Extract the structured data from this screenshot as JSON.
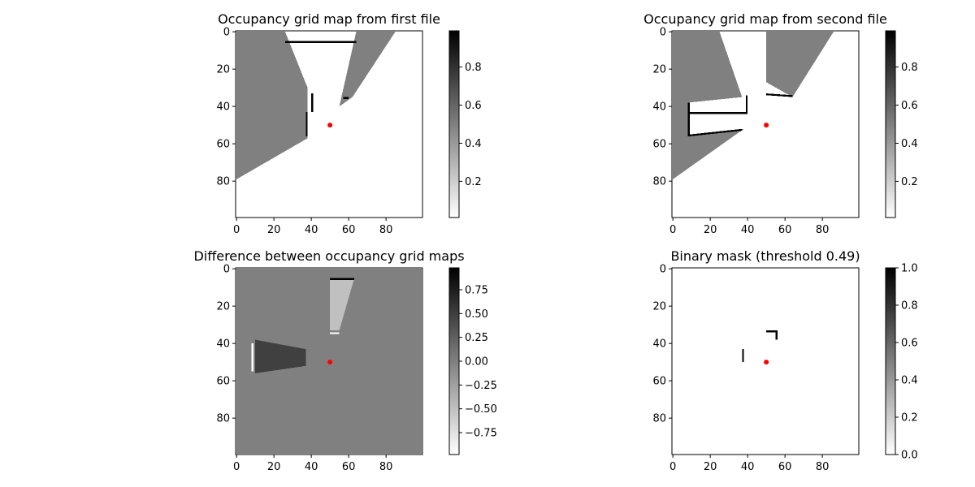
{
  "chart_data": [
    {
      "type": "heatmap",
      "title": "Occupancy grid map from first file",
      "xlim": [
        0,
        99
      ],
      "ylim": [
        99,
        0
      ],
      "xticks": [
        0,
        20,
        40,
        60,
        80
      ],
      "yticks": [
        0,
        20,
        40,
        60,
        80
      ],
      "grid": false,
      "colormap": "gray_r",
      "colorbar": {
        "range": [
          0.01,
          0.99
        ],
        "ticks": [
          "0.2",
          "0.4",
          "0.6",
          "0.8"
        ],
        "tick_values": [
          0.2,
          0.4,
          0.6,
          0.8
        ]
      },
      "marker": {
        "x": 50,
        "y": 50,
        "color": "#ff0000"
      },
      "regions": [
        {
          "fill": "#808080",
          "points": [
            [
              0,
              0
            ],
            [
              26,
              0
            ],
            [
              38,
              30
            ],
            [
              38,
              57
            ],
            [
              0,
              79
            ]
          ]
        },
        {
          "fill": "#808080",
          "points": [
            [
              85,
              0
            ],
            [
              64,
              0
            ],
            [
              55,
              40
            ],
            [
              62,
              35
            ]
          ]
        },
        {
          "fill": "#000000",
          "points": [
            [
              26,
              5
            ],
            [
              64,
              5
            ],
            [
              64,
              6
            ],
            [
              26,
              6
            ]
          ]
        },
        {
          "fill": "#000000",
          "points": [
            [
              40,
              33
            ],
            [
              41,
              33
            ],
            [
              41,
              43
            ],
            [
              40,
              43
            ]
          ]
        },
        {
          "fill": "#000000",
          "points": [
            [
              37,
              43
            ],
            [
              38,
              43
            ],
            [
              38,
              56
            ],
            [
              37,
              56
            ]
          ]
        },
        {
          "fill": "#000000",
          "points": [
            [
              57,
              35
            ],
            [
              60,
              35
            ],
            [
              60,
              36
            ],
            [
              57,
              36
            ]
          ]
        }
      ]
    },
    {
      "type": "heatmap",
      "title": "Occupancy grid map from second file",
      "xlim": [
        0,
        99
      ],
      "ylim": [
        99,
        0
      ],
      "xticks": [
        0,
        20,
        40,
        60,
        80
      ],
      "yticks": [
        0,
        20,
        40,
        60,
        80
      ],
      "grid": false,
      "colormap": "gray_r",
      "colorbar": {
        "range": [
          0.01,
          0.99
        ],
        "ticks": [
          "0.2",
          "0.4",
          "0.6",
          "0.8"
        ],
        "tick_values": [
          0.2,
          0.4,
          0.6,
          0.8
        ]
      },
      "marker": {
        "x": 50,
        "y": 50,
        "color": "#ff0000"
      },
      "regions": [
        {
          "fill": "#808080",
          "points": [
            [
              0,
              0
            ],
            [
              25,
              0
            ],
            [
              37,
              35
            ],
            [
              8,
              38
            ],
            [
              8,
              56
            ],
            [
              38,
              52
            ],
            [
              0,
              79
            ]
          ]
        },
        {
          "fill": "#808080",
          "points": [
            [
              50,
              0
            ],
            [
              86,
              0
            ],
            [
              64,
              35
            ],
            [
              50,
              27
            ]
          ]
        },
        {
          "fill": "#000000",
          "points": [
            [
              39,
              34
            ],
            [
              40,
              34
            ],
            [
              40,
              44
            ],
            [
              39,
              44
            ]
          ]
        },
        {
          "fill": "#000000",
          "points": [
            [
              8,
              38
            ],
            [
              9,
              38
            ],
            [
              9,
              56
            ],
            [
              8,
              56
            ]
          ]
        },
        {
          "fill": "#000000",
          "points": [
            [
              9,
              43
            ],
            [
              39,
              43
            ],
            [
              39,
              44
            ],
            [
              9,
              44
            ]
          ]
        },
        {
          "fill": "#000000",
          "points": [
            [
              9,
              55
            ],
            [
              37,
              52
            ],
            [
              37,
              53
            ],
            [
              9,
              56
            ]
          ]
        },
        {
          "fill": "#000000",
          "points": [
            [
              50,
              33
            ],
            [
              64,
              34
            ],
            [
              64,
              35
            ],
            [
              50,
              34
            ]
          ]
        }
      ]
    },
    {
      "type": "heatmap",
      "title": "Difference between occupancy grid maps",
      "xlim": [
        0,
        99
      ],
      "ylim": [
        99,
        0
      ],
      "xticks": [
        0,
        20,
        40,
        60,
        80
      ],
      "yticks": [
        0,
        20,
        40,
        60,
        80
      ],
      "grid": false,
      "colormap": "gray_r",
      "colorbar": {
        "range": [
          -0.98,
          0.98
        ],
        "ticks": [
          "0.75",
          "0.50",
          "0.25",
          "0.00",
          "−0.25",
          "−0.50",
          "−0.75"
        ],
        "tick_values": [
          0.75,
          0.5,
          0.25,
          0.0,
          -0.25,
          -0.5,
          -0.75
        ]
      },
      "marker": {
        "x": 50,
        "y": 50,
        "color": "#ff0000"
      },
      "regions": [
        {
          "fill": "#808080",
          "points": [
            [
              0,
              0
            ],
            [
              99,
              0
            ],
            [
              99,
              99
            ],
            [
              0,
              99
            ]
          ]
        },
        {
          "fill": "#c0c0c0",
          "points": [
            [
              50,
              5
            ],
            [
              63,
              5
            ],
            [
              55,
              33
            ],
            [
              50,
              33
            ]
          ]
        },
        {
          "fill": "#404040",
          "points": [
            [
              10,
              38
            ],
            [
              37,
              43
            ],
            [
              37,
              52
            ],
            [
              10,
              56
            ]
          ]
        },
        {
          "fill": "#ffffff",
          "points": [
            [
              50,
              34
            ],
            [
              55,
              34
            ],
            [
              55,
              35
            ],
            [
              50,
              35
            ]
          ]
        },
        {
          "fill": "#ffffff",
          "points": [
            [
              8,
              40
            ],
            [
              9,
              40
            ],
            [
              9,
              55
            ],
            [
              8,
              55
            ]
          ]
        },
        {
          "fill": "#000000",
          "points": [
            [
              50,
              5
            ],
            [
              63,
              5
            ],
            [
              63,
              6
            ],
            [
              50,
              6
            ]
          ]
        }
      ]
    },
    {
      "type": "heatmap",
      "title": "Binary mask (threshold 0.49)",
      "xlim": [
        0,
        99
      ],
      "ylim": [
        99,
        0
      ],
      "xticks": [
        0,
        20,
        40,
        60,
        80
      ],
      "yticks": [
        0,
        20,
        40,
        60,
        80
      ],
      "grid": false,
      "colormap": "gray_r",
      "colorbar": {
        "range": [
          0.0,
          1.0
        ],
        "ticks": [
          "0.0",
          "0.2",
          "0.4",
          "0.6",
          "0.8",
          "1.0"
        ],
        "tick_values": [
          0.0,
          0.2,
          0.4,
          0.6,
          0.8,
          1.0
        ]
      },
      "marker": {
        "x": 50,
        "y": 50,
        "color": "#ff0000"
      },
      "regions": [
        {
          "fill": "#000000",
          "points": [
            [
              37,
              43
            ],
            [
              38,
              43
            ],
            [
              38,
              50
            ],
            [
              37,
              50
            ]
          ]
        },
        {
          "fill": "#000000",
          "points": [
            [
              50,
              33
            ],
            [
              56,
              33
            ],
            [
              56,
              34
            ],
            [
              50,
              34
            ]
          ]
        },
        {
          "fill": "#000000",
          "points": [
            [
              55,
              34
            ],
            [
              56,
              34
            ],
            [
              56,
              38
            ],
            [
              55,
              38
            ]
          ]
        }
      ]
    }
  ]
}
